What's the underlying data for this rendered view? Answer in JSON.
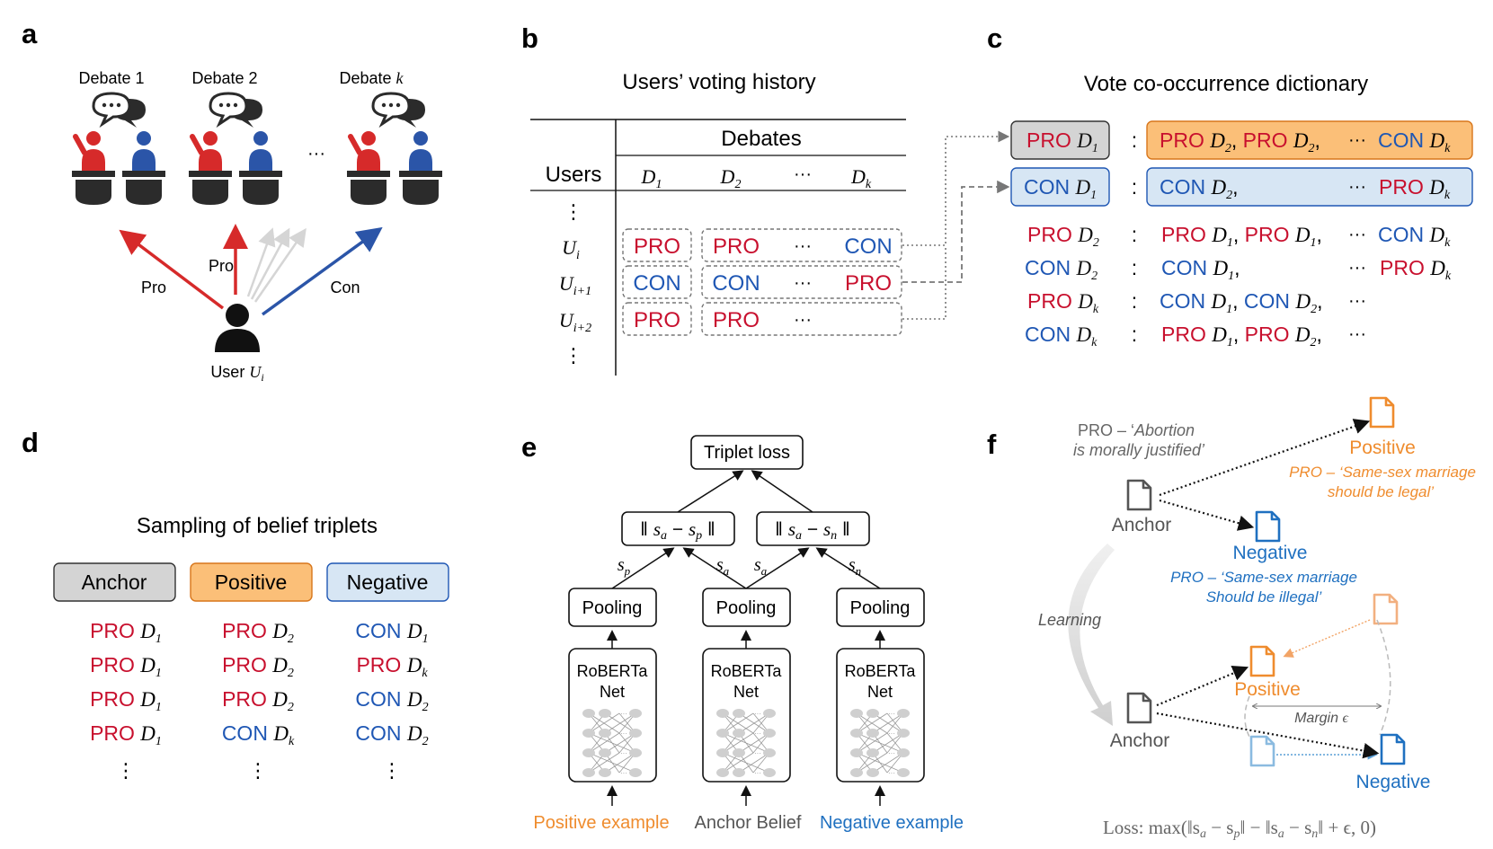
{
  "colors": {
    "pro": "#c8102e",
    "con": "#1f57b4",
    "positive": "#ef8c2e",
    "negative": "#1f70c0",
    "anchor_box": "#d4d4d4",
    "positive_box": "#fbbf78",
    "negative_box": "#d7e6f4"
  },
  "panels": {
    "a": {
      "letter": "a",
      "debates": [
        "Debate 1",
        "Debate 2",
        "Debate"
      ],
      "debate_k": "k",
      "dots": "···",
      "pro1": "Pro",
      "pro2": "Pro",
      "con": "Con",
      "user_label": "User",
      "user_var": "U",
      "user_sub": "i",
      "icons": [
        "speech-bubble-icon",
        "debater-pro-icon",
        "debater-con-icon",
        "podium-icon",
        "user-icon"
      ]
    },
    "b": {
      "letter": "b",
      "title": "Users’ voting history",
      "debates_header": "Debates",
      "users_header": "Users",
      "columns": [
        {
          "var": "D",
          "sub": "1"
        },
        {
          "var": "D",
          "sub": "2"
        },
        {
          "var": "···",
          "sub": ""
        },
        {
          "var": "D",
          "sub": "k"
        }
      ],
      "vdots": "⋮",
      "rows": [
        {
          "var": "U",
          "sub": "i",
          "first": "PRO",
          "rest": [
            "PRO",
            "···",
            "CON"
          ]
        },
        {
          "var": "U",
          "sub": "i+1",
          "first": "CON",
          "rest": [
            "CON",
            "···",
            "PRO"
          ]
        },
        {
          "var": "U",
          "sub": "i+2",
          "first": "PRO",
          "rest": [
            "PRO",
            "···",
            ""
          ]
        }
      ]
    },
    "c": {
      "letter": "c",
      "title": "Vote co-occurrence dictionary",
      "colon": ":",
      "entries": [
        {
          "key": "PRO",
          "key_var": "D",
          "key_sub": "1",
          "values": [
            [
              "PRO",
              "2"
            ],
            [
              "PRO",
              "2"
            ]
          ],
          "dots": "···",
          "last": [
            "CON",
            "k"
          ]
        },
        {
          "key": "CON",
          "key_var": "D",
          "key_sub": "1",
          "values": [
            [
              "CON",
              "2"
            ]
          ],
          "dots": "···",
          "last": [
            "PRO",
            "k"
          ]
        },
        {
          "key": "PRO",
          "key_var": "D",
          "key_sub": "2",
          "values": [
            [
              "PRO",
              "1"
            ],
            [
              "PRO",
              "1"
            ]
          ],
          "dots": "···",
          "last": [
            "CON",
            "k"
          ]
        },
        {
          "key": "CON",
          "key_var": "D",
          "key_sub": "2",
          "values": [
            [
              "CON",
              "1"
            ]
          ],
          "dots": "···",
          "last": [
            "PRO",
            "k"
          ]
        },
        {
          "key": "PRO",
          "key_var": "D",
          "key_sub": "k",
          "values": [
            [
              "CON",
              "1"
            ],
            [
              "CON",
              "2"
            ]
          ],
          "dots": "···",
          "last": null
        },
        {
          "key": "CON",
          "key_var": "D",
          "key_sub": "k",
          "values": [
            [
              "PRO",
              "1"
            ],
            [
              "PRO",
              "2"
            ]
          ],
          "dots": "···",
          "last": null
        }
      ]
    },
    "d": {
      "letter": "d",
      "title": "Sampling of belief triplets",
      "headers": [
        "Anchor",
        "Positive",
        "Negative"
      ],
      "rows": [
        [
          [
            "PRO",
            "1"
          ],
          [
            "PRO",
            "2"
          ],
          [
            "CON",
            "1"
          ]
        ],
        [
          [
            "PRO",
            "1"
          ],
          [
            "PRO",
            "2"
          ],
          [
            "PRO",
            "k"
          ]
        ],
        [
          [
            "PRO",
            "1"
          ],
          [
            "PRO",
            "2"
          ],
          [
            "CON",
            "2"
          ]
        ],
        [
          [
            "PRO",
            "1"
          ],
          [
            "CON",
            "k"
          ],
          [
            "CON",
            "2"
          ]
        ]
      ],
      "var": "D",
      "vdots": "⋮"
    },
    "e": {
      "letter": "e",
      "triplet_loss": "Triplet loss",
      "dist_ap": {
        "bar": "‖",
        "s": "s",
        "a": "a",
        "minus": "−",
        "p": "p"
      },
      "dist_an": {
        "bar": "‖",
        "s": "s",
        "a": "a",
        "minus": "−",
        "n": "n"
      },
      "edge_labels": [
        [
          "s",
          "p"
        ],
        [
          "s",
          "a"
        ],
        [
          "s",
          "a"
        ],
        [
          "s",
          "n"
        ]
      ],
      "pooling": "Pooling",
      "roberta1": "RoBERTa",
      "roberta2": "Net",
      "inputs": [
        "Positive example",
        "Anchor Belief",
        "Negative example"
      ]
    },
    "f": {
      "letter": "f",
      "anchor_quote_pre": "PRO – ‘",
      "anchor_quote_l1": "Abortion",
      "anchor_quote_l2": "is morally justified’",
      "positive_label": "Positive",
      "positive_quote_l1": "PRO – ‘Same-sex marriage",
      "positive_quote_l2": "should be legal’",
      "negative_label": "Negative",
      "negative_quote_l1": "PRO – ‘Same-sex marriage",
      "negative_quote_l2": "Should be illegal’",
      "anchor_label": "Anchor",
      "learning_label": "Learning",
      "margin_label": "Margin",
      "margin_sym": "ϵ",
      "anchor_label2": "Anchor",
      "positive_label2": "Positive",
      "negative_label2": "Negative",
      "loss": "Loss: max(‖s",
      "loss_a": "a",
      "loss_mid1": " − s",
      "loss_p": "p",
      "loss_mid2": "‖ − ‖s",
      "loss_a2": "a",
      "loss_mid3": " − s",
      "loss_n": "n",
      "loss_end": "‖ + ϵ, 0)",
      "icons": [
        "document-icon"
      ]
    }
  }
}
